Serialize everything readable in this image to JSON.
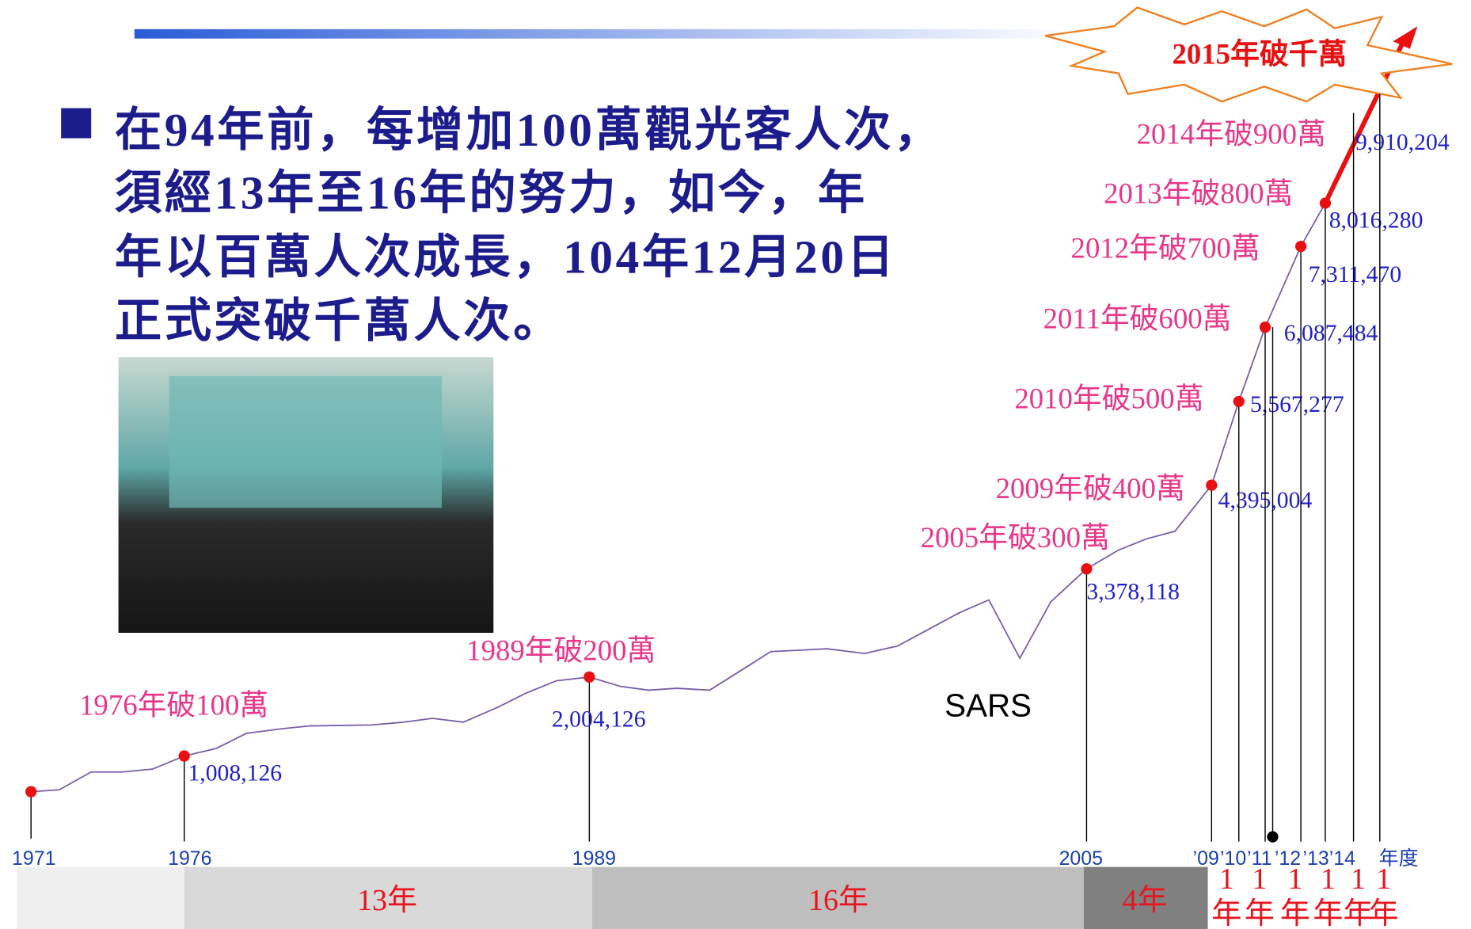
{
  "bullet": [
    "在94年前，每增加100萬觀光客人次，",
    "須經13年至16年的努力，如今，年",
    "年以百萬人次成長，104年12月20日",
    "正式突破千萬人次。"
  ],
  "burst": "2015年破千萬",
  "milestones": [
    {
      "label": "1976年破100萬",
      "value": "1,008,126"
    },
    {
      "label": "1989年破200萬",
      "value": "2,004,126"
    },
    {
      "label": "2005年破300萬",
      "value": "3,378,118"
    },
    {
      "label": "2009年破400萬",
      "value": "4,395,004"
    },
    {
      "label": "2010年破500萬",
      "value": "5,567,277"
    },
    {
      "label": "2011年破600萬",
      "value": "6,087,484"
    },
    {
      "label": "2012年破700萬",
      "value": "7,311,470"
    },
    {
      "label": "2013年破800萬",
      "value": "8,016,280"
    },
    {
      "label": "2014年破900萬",
      "value": "9,910,204"
    }
  ],
  "note": "SARS",
  "years": [
    "1971",
    "1976",
    "1989",
    "2005",
    "’09",
    "’10",
    "’11",
    "’12",
    "’13",
    "’14",
    "年度"
  ],
  "periods": [
    "13年",
    "16年",
    "4年"
  ],
  "small_periods": [
    {
      "num": "1",
      "unit": "年"
    },
    {
      "num": "1",
      "unit": "年"
    },
    {
      "num": "1",
      "unit": "年"
    },
    {
      "num": "1",
      "unit": "年"
    },
    {
      "num": "1",
      "unit": "年"
    },
    {
      "num": "1",
      "unit": "年"
    }
  ]
}
